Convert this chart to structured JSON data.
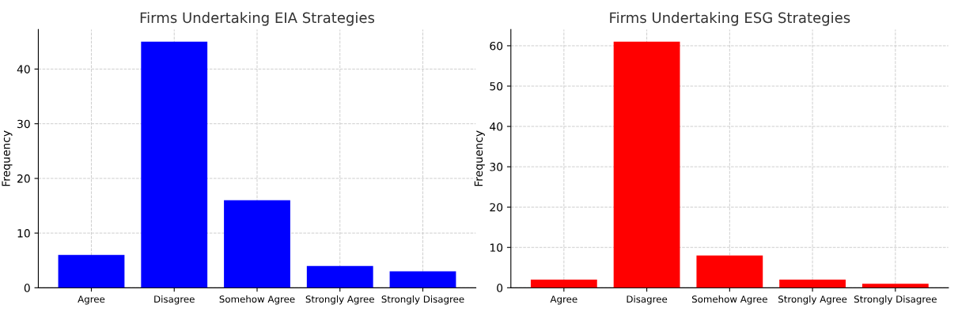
{
  "chart_data": [
    {
      "type": "bar",
      "title": "Firms Undertaking EIA Strategies",
      "ylabel": "Frequency",
      "categories": [
        "Agree",
        "Disagree",
        "Somehow Agree",
        "Strongly Agree",
        "Strongly Disagree"
      ],
      "values": [
        6,
        45,
        16,
        4,
        3
      ],
      "color": "#0000ff",
      "ylim": [
        0,
        47.25
      ],
      "yticks": [
        0,
        10,
        20,
        30,
        40
      ],
      "grid": true
    },
    {
      "type": "bar",
      "title": "Firms Undertaking ESG Strategies",
      "ylabel": "Frequency",
      "categories": [
        "Agree",
        "Disagree",
        "Somehow Agree",
        "Strongly Agree",
        "Strongly Disagree"
      ],
      "values": [
        2,
        61,
        8,
        2,
        1
      ],
      "color": "#ff0000",
      "ylim": [
        0,
        64.05
      ],
      "yticks": [
        0,
        10,
        20,
        30,
        40,
        50,
        60
      ],
      "grid": true
    }
  ]
}
